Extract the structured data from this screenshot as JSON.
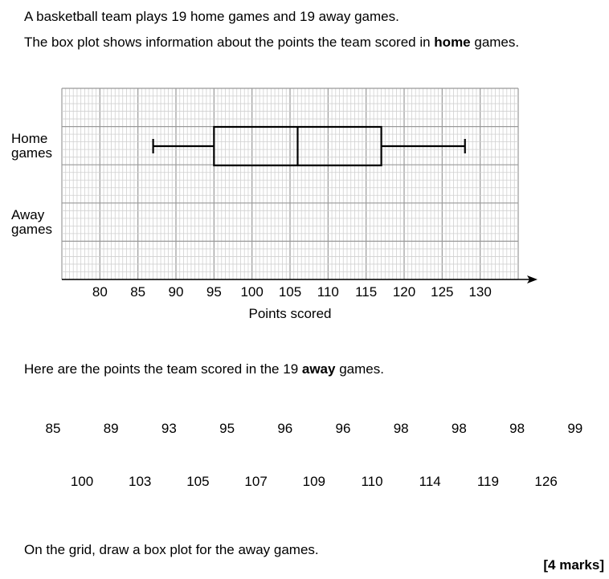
{
  "intro": {
    "line1": "A basketball team plays 19 home games and 19 away games.",
    "line2_a": "The box plot shows information about the points the team scored in ",
    "line2_bold": "home",
    "line2_b": " games."
  },
  "rows": {
    "home": [
      "Home",
      "games"
    ],
    "away": [
      "Away",
      "games"
    ]
  },
  "chart_data": {
    "type": "box",
    "xlabel": "Points scored",
    "ticks": [
      80,
      85,
      90,
      95,
      100,
      105,
      110,
      115,
      120,
      125,
      130
    ],
    "xlim": [
      75,
      135
    ],
    "series": [
      {
        "min": 87,
        "q1": 95,
        "median": 106,
        "q3": 117,
        "max": 128
      }
    ]
  },
  "away_intro": {
    "a": "Here are the points the team scored in the 19 ",
    "bold": "away",
    "b": " games."
  },
  "away_row1": [
    "85",
    "89",
    "93",
    "95",
    "96",
    "96",
    "98",
    "98",
    "98",
    "99"
  ],
  "away_row2": [
    "100",
    "103",
    "105",
    "107",
    "109",
    "110",
    "114",
    "119",
    "126"
  ],
  "instruction": "On the grid, draw a box plot for the away games.",
  "marks": "[4 marks]"
}
